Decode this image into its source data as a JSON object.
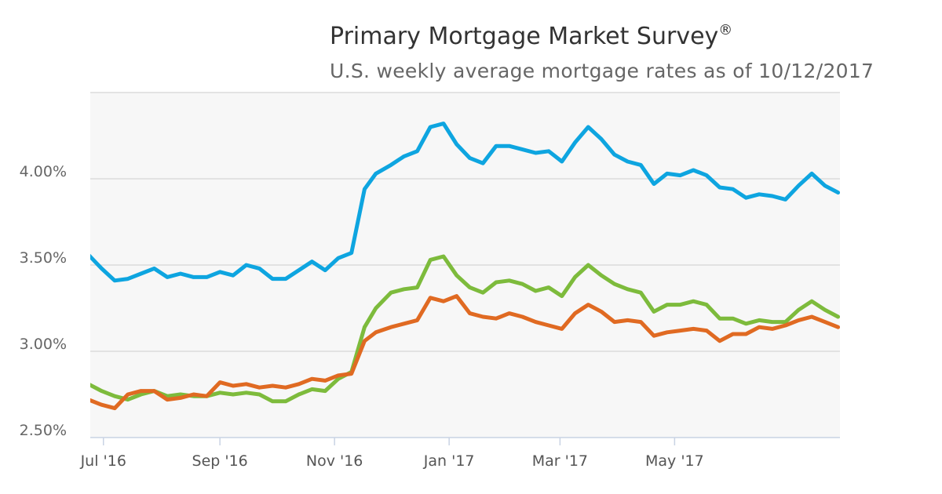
{
  "chart_data": {
    "type": "line",
    "title": "Primary Mortgage Market Survey",
    "title_mark": "®",
    "subtitle": "U.S. weekly average mortgage rates as of 10/12/2017",
    "xlabel": "",
    "ylabel": "",
    "y_ticks": [
      "2.50%",
      "3.00%",
      "3.50%",
      "4.00%"
    ],
    "y_tick_values": [
      2.5,
      3.0,
      3.5,
      4.0
    ],
    "ylim": [
      2.5,
      4.5
    ],
    "x_ticks": [
      "Jul '16",
      "Sep '16",
      "Nov '16",
      "Jan '17",
      "Mar '17",
      "May '17"
    ],
    "x_tick_dates": [
      "2016-07-01",
      "2016-09-01",
      "2016-11-01",
      "2017-01-01",
      "2017-03-01",
      "2017-05-01"
    ],
    "xlim": [
      "2016-06-24",
      "2017-07-28"
    ],
    "grid": true,
    "legend": "none",
    "x": [
      "2016-06-23",
      "2016-06-30",
      "2016-07-07",
      "2016-07-14",
      "2016-07-21",
      "2016-07-28",
      "2016-08-04",
      "2016-08-11",
      "2016-08-18",
      "2016-08-25",
      "2016-09-01",
      "2016-09-08",
      "2016-09-15",
      "2016-09-22",
      "2016-09-29",
      "2016-10-06",
      "2016-10-13",
      "2016-10-20",
      "2016-10-27",
      "2016-11-03",
      "2016-11-10",
      "2016-11-17",
      "2016-11-23",
      "2016-12-01",
      "2016-12-08",
      "2016-12-15",
      "2016-12-22",
      "2016-12-29",
      "2017-01-05",
      "2017-01-12",
      "2017-01-19",
      "2017-01-26",
      "2017-02-02",
      "2017-02-09",
      "2017-02-16",
      "2017-02-23",
      "2017-03-02",
      "2017-03-09",
      "2017-03-16",
      "2017-03-23",
      "2017-03-30",
      "2017-04-06",
      "2017-04-13",
      "2017-04-20",
      "2017-04-27",
      "2017-05-04",
      "2017-05-11",
      "2017-05-18",
      "2017-05-25",
      "2017-06-01",
      "2017-06-08",
      "2017-06-15",
      "2017-06-22",
      "2017-06-29",
      "2017-07-06",
      "2017-07-13",
      "2017-07-20",
      "2017-07-27"
    ],
    "series": [
      {
        "color": "#0ea5e0",
        "values": [
          3.56,
          3.48,
          3.41,
          3.42,
          3.45,
          3.48,
          3.43,
          3.45,
          3.43,
          3.43,
          3.46,
          3.44,
          3.5,
          3.48,
          3.42,
          3.42,
          3.47,
          3.52,
          3.47,
          3.54,
          3.57,
          3.94,
          4.03,
          4.08,
          4.13,
          4.16,
          4.3,
          4.32,
          4.2,
          4.12,
          4.09,
          4.19,
          4.19,
          4.17,
          4.15,
          4.16,
          4.1,
          4.21,
          4.3,
          4.23,
          4.14,
          4.1,
          4.08,
          3.97,
          4.03,
          4.02,
          4.05,
          4.02,
          3.95,
          3.94,
          3.89,
          3.91,
          3.9,
          3.88,
          3.96,
          4.03,
          3.96,
          3.92
        ]
      },
      {
        "color": "#7dbb3c",
        "values": [
          2.81,
          2.77,
          2.74,
          2.72,
          2.75,
          2.77,
          2.74,
          2.75,
          2.74,
          2.74,
          2.76,
          2.75,
          2.76,
          2.75,
          2.71,
          2.71,
          2.75,
          2.78,
          2.77,
          2.84,
          2.88,
          3.14,
          3.25,
          3.34,
          3.36,
          3.37,
          3.53,
          3.55,
          3.44,
          3.37,
          3.34,
          3.4,
          3.41,
          3.39,
          3.35,
          3.37,
          3.32,
          3.43,
          3.5,
          3.44,
          3.39,
          3.36,
          3.34,
          3.23,
          3.27,
          3.27,
          3.29,
          3.27,
          3.19,
          3.19,
          3.16,
          3.18,
          3.17,
          3.17,
          3.24,
          3.29,
          3.24,
          3.2
        ]
      },
      {
        "color": "#e06a22",
        "values": [
          2.72,
          2.69,
          2.67,
          2.75,
          2.77,
          2.77,
          2.72,
          2.73,
          2.75,
          2.74,
          2.82,
          2.8,
          2.81,
          2.79,
          2.8,
          2.79,
          2.81,
          2.84,
          2.83,
          2.86,
          2.87,
          3.06,
          3.11,
          3.14,
          3.16,
          3.18,
          3.31,
          3.29,
          3.32,
          3.22,
          3.2,
          3.19,
          3.22,
          3.2,
          3.17,
          3.15,
          3.13,
          3.22,
          3.27,
          3.23,
          3.17,
          3.18,
          3.17,
          3.09,
          3.11,
          3.12,
          3.13,
          3.12,
          3.06,
          3.1,
          3.1,
          3.14,
          3.13,
          3.15,
          3.18,
          3.2,
          3.17,
          3.14
        ]
      }
    ]
  }
}
